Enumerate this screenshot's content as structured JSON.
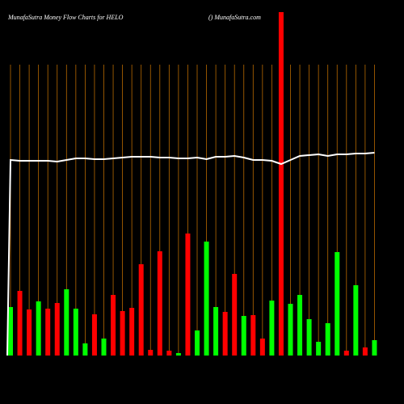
{
  "chart_data": {
    "type": "bar",
    "title": "MunafaSutra  Money Flow  Charts for HELO",
    "subtitle": "() MunafaSutra.com",
    "ylim": [
      0,
      430
    ],
    "values": [
      60,
      80,
      57,
      67,
      58,
      65,
      82,
      58,
      15,
      51,
      21,
      75,
      55,
      59,
      113,
      7,
      129,
      6,
      3,
      151,
      31,
      141,
      60,
      54,
      101,
      49,
      50,
      21,
      68,
      425,
      64,
      75,
      45,
      17,
      40,
      128,
      6,
      87,
      10,
      19
    ],
    "colors": [
      "#00ff00",
      "#ff0000",
      "#ff0000",
      "#00ff00",
      "#ff0000",
      "#ff0000",
      "#00ff00",
      "#00ff00",
      "#00ff00",
      "#ff0000",
      "#00ff00",
      "#ff0000",
      "#ff0000",
      "#ff0000",
      "#ff0000",
      "#ff0000",
      "#ff0000",
      "#ff0000",
      "#00ff00",
      "#ff0000",
      "#00ff00",
      "#00ff00",
      "#00ff00",
      "#ff0000",
      "#ff0000",
      "#00ff00",
      "#ff0000",
      "#ff0000",
      "#00ff00",
      "#ff0000",
      "#00ff00",
      "#00ff00",
      "#00ff00",
      "#00ff00",
      "#00ff00",
      "#00ff00",
      "#ff0000",
      "#00ff00",
      "#ff0000",
      "#00ff00"
    ],
    "line": {
      "color": "#ffffff",
      "values": [
        242,
        241,
        241,
        241,
        241,
        240,
        242,
        244,
        244,
        243,
        243,
        244,
        245,
        246,
        246,
        246,
        245,
        245,
        244,
        244,
        245,
        243,
        246,
        246,
        247,
        245,
        242,
        242,
        241,
        237,
        242,
        247,
        248,
        249,
        247,
        249,
        249,
        250,
        250,
        251
      ]
    },
    "grid_color": "#b86a00"
  }
}
